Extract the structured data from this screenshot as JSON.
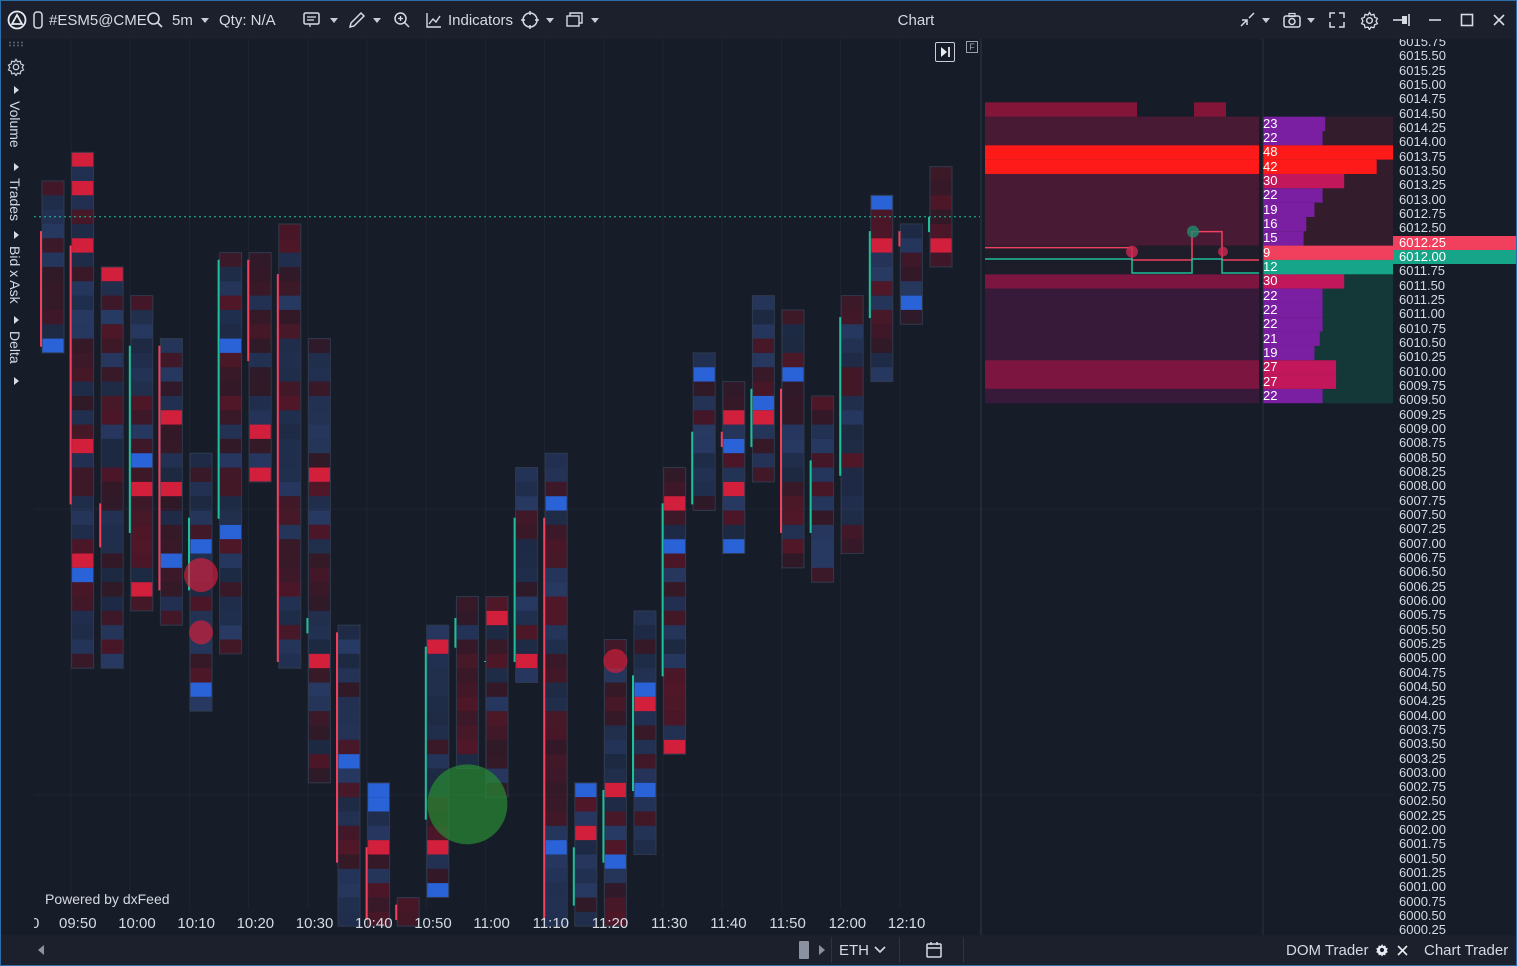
{
  "toolbar": {
    "symbol": "#ESM5@CME",
    "interval": "5m",
    "qty": "Qty: N/A",
    "indicators_label": "Indicators",
    "window_title": "Chart"
  },
  "side_tabs": [
    "Volume",
    "Trades",
    "Bid x Ask",
    "Delta"
  ],
  "chart": {
    "watermark": "Powered by dxFeed",
    "time_labels": [
      "0",
      "09:50",
      "10:00",
      "10:10",
      "10:20",
      "10:30",
      "10:40",
      "10:50",
      "11:00",
      "11:10",
      "11:20",
      "11:30",
      "11:40",
      "11:50",
      "12:00",
      "12:10"
    ],
    "last_price": 6012.25
  },
  "chart_data": {
    "type": "candlestick",
    "title": "",
    "price_range": [
      6000.25,
      6015.75
    ],
    "candles": [
      {
        "time": "09:45",
        "open": 6012.0,
        "high": 6012.75,
        "low": 6010.0,
        "close": 6010.0
      },
      {
        "time": "09:50",
        "open": 6011.75,
        "high": 6013.25,
        "low": 6004.5,
        "close": 6007.25
      },
      {
        "time": "09:55",
        "open": 6007.25,
        "high": 6011.25,
        "low": 6004.5,
        "close": 6006.5
      },
      {
        "time": "10:00",
        "open": 6006.75,
        "high": 6010.75,
        "low": 6005.5,
        "close": 6010.0
      },
      {
        "time": "10:05",
        "open": 6010.0,
        "high": 6010.0,
        "low": 6005.25,
        "close": 6005.75
      },
      {
        "time": "10:10",
        "open": 6005.75,
        "high": 6008.0,
        "low": 6003.75,
        "close": 6007.0
      },
      {
        "time": "10:15",
        "open": 6007.0,
        "high": 6011.5,
        "low": 6004.75,
        "close": 6011.5
      },
      {
        "time": "10:20",
        "open": 6011.5,
        "high": 6011.5,
        "low": 6007.75,
        "close": 6009.75
      },
      {
        "time": "10:25",
        "open": 6011.25,
        "high": 6012.0,
        "low": 6004.5,
        "close": 6004.5
      },
      {
        "time": "10:30",
        "open": 6005.0,
        "high": 6010.0,
        "low": 6002.5,
        "close": 6005.25
      },
      {
        "time": "10:35",
        "open": 6005.0,
        "high": 6005.0,
        "low": 6000.0,
        "close": 6001.0
      },
      {
        "time": "10:40",
        "open": 6001.25,
        "high": 6002.25,
        "low": 6000.0,
        "close": 6000.0
      },
      {
        "time": "10:45",
        "open": 6000.25,
        "high": 6000.25,
        "low": 6000.0,
        "close": 6000.0
      },
      {
        "time": "10:50",
        "open": 6001.75,
        "high": 6005.0,
        "low": 6000.5,
        "close": 6004.75
      },
      {
        "time": "10:55",
        "open": 6004.75,
        "high": 6005.5,
        "low": 6002.75,
        "close": 6005.25
      },
      {
        "time": "11:00",
        "open": 6004.5,
        "high": 6005.5,
        "low": 6002.25,
        "close": 6004.5
      },
      {
        "time": "11:05",
        "open": 6004.5,
        "high": 6007.75,
        "low": 6004.25,
        "close": 6007.0
      },
      {
        "time": "11:10",
        "open": 6007.0,
        "high": 6008.0,
        "low": 6000.0,
        "close": 6000.0
      },
      {
        "time": "11:15",
        "open": 6000.25,
        "high": 6002.25,
        "low": 6000.0,
        "close": 6001.25
      },
      {
        "time": "11:20",
        "open": 6001.0,
        "high": 6004.75,
        "low": 6000.0,
        "close": 6002.25
      },
      {
        "time": "11:25",
        "open": 6002.25,
        "high": 6005.25,
        "low": 6001.25,
        "close": 6004.25
      },
      {
        "time": "11:30",
        "open": 6004.25,
        "high": 6007.75,
        "low": 6003.0,
        "close": 6007.25
      },
      {
        "time": "11:35",
        "open": 6007.25,
        "high": 6009.75,
        "low": 6007.25,
        "close": 6008.5
      },
      {
        "time": "11:40",
        "open": 6008.5,
        "high": 6009.25,
        "low": 6006.5,
        "close": 6008.25
      },
      {
        "time": "11:45",
        "open": 6008.25,
        "high": 6010.75,
        "low": 6007.75,
        "close": 6009.25
      },
      {
        "time": "11:50",
        "open": 6009.25,
        "high": 6010.5,
        "low": 6006.25,
        "close": 6006.75
      },
      {
        "time": "11:55",
        "open": 6006.75,
        "high": 6009.0,
        "low": 6006.0,
        "close": 6008.0
      },
      {
        "time": "12:00",
        "open": 6007.75,
        "high": 6010.75,
        "low": 6006.5,
        "close": 6010.5
      },
      {
        "time": "12:05",
        "open": 6010.5,
        "high": 6012.5,
        "low": 6009.5,
        "close": 6012.0
      },
      {
        "time": "12:10",
        "open": 6012.0,
        "high": 6012.0,
        "low": 6010.5,
        "close": 6011.75
      },
      {
        "time": "12:15",
        "open": 6012.0,
        "high": 6013.0,
        "low": 6011.5,
        "close": 6012.25
      }
    ],
    "trade_bubbles": [
      {
        "time": "10:10",
        "price": 6006.0,
        "side": "sell",
        "size": "medium"
      },
      {
        "time": "10:10",
        "price": 6005.0,
        "side": "sell",
        "size": "small"
      },
      {
        "time": "10:55",
        "price": 6002.0,
        "side": "buy",
        "size": "large"
      },
      {
        "time": "11:20",
        "price": 6004.5,
        "side": "sell",
        "size": "small"
      }
    ]
  },
  "dom": {
    "prices": [
      "6015.75",
      "6015.50",
      "6015.25",
      "6015.00",
      "6014.75",
      "6014.50",
      "6014.25",
      "6014.00",
      "6013.75",
      "6013.50",
      "6013.25",
      "6013.00",
      "6012.75",
      "6012.50",
      "6012.25",
      "6012.00",
      "6011.75",
      "6011.50",
      "6011.25",
      "6011.00",
      "6010.75",
      "6010.50",
      "6010.25",
      "6010.00",
      "6009.75",
      "6009.50",
      "6009.25",
      "6009.00",
      "6008.75",
      "6008.50",
      "6008.25",
      "6008.00",
      "6007.75",
      "6007.50",
      "6007.25",
      "6007.00",
      "6006.75",
      "6006.50",
      "6006.25",
      "6006.00",
      "6005.75",
      "6005.50",
      "6005.25",
      "6005.00",
      "6004.75",
      "6004.50",
      "6004.25",
      "6004.00",
      "6003.75",
      "6003.50",
      "6003.25",
      "6003.00",
      "6002.75",
      "6002.50",
      "6002.25",
      "6002.00",
      "6001.75",
      "6001.50",
      "6001.25",
      "6001.00",
      "6000.75",
      "6000.50",
      "6000.25"
    ],
    "asks": [
      {
        "price": "6014.50",
        "size": 23
      },
      {
        "price": "6014.25",
        "size": 22
      },
      {
        "price": "6014.00",
        "size": 48
      },
      {
        "price": "6013.75",
        "size": 42
      },
      {
        "price": "6013.50",
        "size": 30
      },
      {
        "price": "6013.25",
        "size": 22
      },
      {
        "price": "6013.00",
        "size": 19
      },
      {
        "price": "6012.75",
        "size": 16
      },
      {
        "price": "6012.50",
        "size": 15
      },
      {
        "price": "6012.25",
        "size": 9
      }
    ],
    "bids": [
      {
        "price": "6012.00",
        "size": 12
      },
      {
        "price": "6011.75",
        "size": 30
      },
      {
        "price": "6011.50",
        "size": 22
      },
      {
        "price": "6011.25",
        "size": 22
      },
      {
        "price": "6011.00",
        "size": 22
      },
      {
        "price": "6010.75",
        "size": 21
      },
      {
        "price": "6010.50",
        "size": 19
      },
      {
        "price": "6010.25",
        "size": 27
      },
      {
        "price": "6010.00",
        "size": 27
      },
      {
        "price": "6009.75",
        "size": 22
      }
    ],
    "best_ask": "6012.25",
    "best_bid": "6012.00"
  },
  "bottom": {
    "session": "ETH",
    "dom_trader": "DOM Trader",
    "chart_trader": "Chart Trader"
  },
  "colors": {
    "background": "#161c28",
    "up": "#1fbf9a",
    "down": "#f0405e",
    "buy_cell": "#2a62d8",
    "sell_cell": "#d21f3c",
    "ask_bar": "#ff1a1a",
    "bid_bar": "#17a589",
    "accent": "#2d6ea8"
  }
}
